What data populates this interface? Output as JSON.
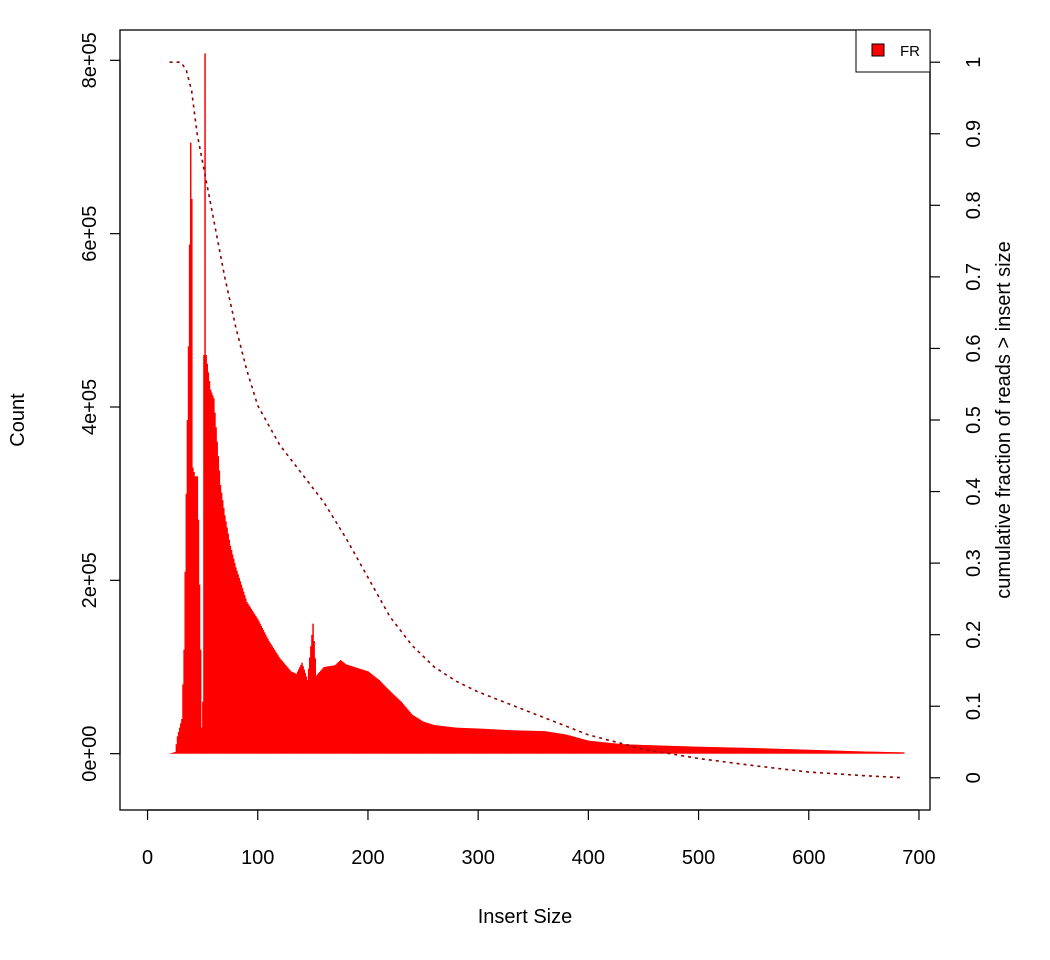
{
  "chart_data": {
    "type": "bar",
    "title": "",
    "xlabel": "Insert Size",
    "ylabel": "Count",
    "y2label": "cumulative fraction of reads > insert size",
    "xlim": [
      -25,
      710
    ],
    "ylim": [
      -65000,
      835000
    ],
    "y2lim": [
      -0.045,
      1.045
    ],
    "x_ticks": [
      0,
      100,
      200,
      300,
      400,
      500,
      600,
      700
    ],
    "x_tick_labels": [
      "0",
      "100",
      "200",
      "300",
      "400",
      "500",
      "600",
      "700"
    ],
    "y_ticks": [
      0,
      200000,
      400000,
      600000,
      800000
    ],
    "y_tick_labels": [
      "0e+00",
      "2e+05",
      "4e+05",
      "6e+05",
      "8e+05"
    ],
    "y2_ticks": [
      0,
      0.1,
      0.2,
      0.3,
      0.4,
      0.5,
      0.6,
      0.7,
      0.8,
      0.9,
      1
    ],
    "y2_tick_labels": [
      "0",
      "0.1",
      "0.2",
      "0.3",
      "0.4",
      "0.5",
      "0.6",
      "0.7",
      "0.8",
      "0.9",
      "1"
    ],
    "grid": false,
    "legend": {
      "position": "top-right",
      "entries": [
        "FR"
      ]
    },
    "series": [
      {
        "name": "FR",
        "kind": "histogram",
        "color": "#ff0000",
        "points": [
          [
            20,
            0
          ],
          [
            25,
            2000
          ],
          [
            27,
            20000
          ],
          [
            29,
            30000
          ],
          [
            31,
            40000
          ],
          [
            33,
            120000
          ],
          [
            35,
            300000
          ],
          [
            37,
            470000
          ],
          [
            39,
            705000
          ],
          [
            40,
            640000
          ],
          [
            41,
            330000
          ],
          [
            43,
            320000
          ],
          [
            45,
            320000
          ],
          [
            46,
            270000
          ],
          [
            48,
            120000
          ],
          [
            49,
            30000
          ],
          [
            50,
            60000
          ],
          [
            51,
            460000
          ],
          [
            52,
            808000
          ],
          [
            53,
            460000
          ],
          [
            55,
            440000
          ],
          [
            57,
            420000
          ],
          [
            60,
            410000
          ],
          [
            63,
            360000
          ],
          [
            66,
            310000
          ],
          [
            70,
            275000
          ],
          [
            75,
            240000
          ],
          [
            80,
            215000
          ],
          [
            90,
            175000
          ],
          [
            100,
            155000
          ],
          [
            110,
            130000
          ],
          [
            120,
            110000
          ],
          [
            130,
            95000
          ],
          [
            135,
            92000
          ],
          [
            140,
            105000
          ],
          [
            145,
            85000
          ],
          [
            150,
            150000
          ],
          [
            153,
            90000
          ],
          [
            160,
            100000
          ],
          [
            170,
            102000
          ],
          [
            175,
            108000
          ],
          [
            180,
            103000
          ],
          [
            190,
            99000
          ],
          [
            200,
            95000
          ],
          [
            210,
            85000
          ],
          [
            220,
            72000
          ],
          [
            230,
            60000
          ],
          [
            240,
            45000
          ],
          [
            250,
            37000
          ],
          [
            260,
            33000
          ],
          [
            280,
            30000
          ],
          [
            300,
            29000
          ],
          [
            330,
            27000
          ],
          [
            360,
            26000
          ],
          [
            380,
            22000
          ],
          [
            400,
            15000
          ],
          [
            430,
            11000
          ],
          [
            450,
            10000
          ],
          [
            500,
            8000
          ],
          [
            550,
            6500
          ],
          [
            600,
            4500
          ],
          [
            650,
            2500
          ],
          [
            686,
            1500
          ]
        ]
      },
      {
        "name": "",
        "kind": "cumulative-line",
        "axis": "right",
        "color": "#8b0000",
        "dash": "dotted",
        "points": [
          [
            20,
            1.0
          ],
          [
            30,
            1.0
          ],
          [
            35,
            0.99
          ],
          [
            40,
            0.96
          ],
          [
            45,
            0.9
          ],
          [
            50,
            0.86
          ],
          [
            55,
            0.82
          ],
          [
            60,
            0.78
          ],
          [
            70,
            0.7
          ],
          [
            80,
            0.63
          ],
          [
            90,
            0.57
          ],
          [
            100,
            0.52
          ],
          [
            120,
            0.465
          ],
          [
            140,
            0.425
          ],
          [
            160,
            0.385
          ],
          [
            180,
            0.335
          ],
          [
            200,
            0.28
          ],
          [
            220,
            0.225
          ],
          [
            240,
            0.185
          ],
          [
            260,
            0.155
          ],
          [
            280,
            0.135
          ],
          [
            300,
            0.12
          ],
          [
            350,
            0.09
          ],
          [
            400,
            0.06
          ],
          [
            450,
            0.04
          ],
          [
            500,
            0.027
          ],
          [
            550,
            0.017
          ],
          [
            600,
            0.008
          ],
          [
            650,
            0.003
          ],
          [
            686,
            0.0
          ]
        ]
      }
    ]
  }
}
